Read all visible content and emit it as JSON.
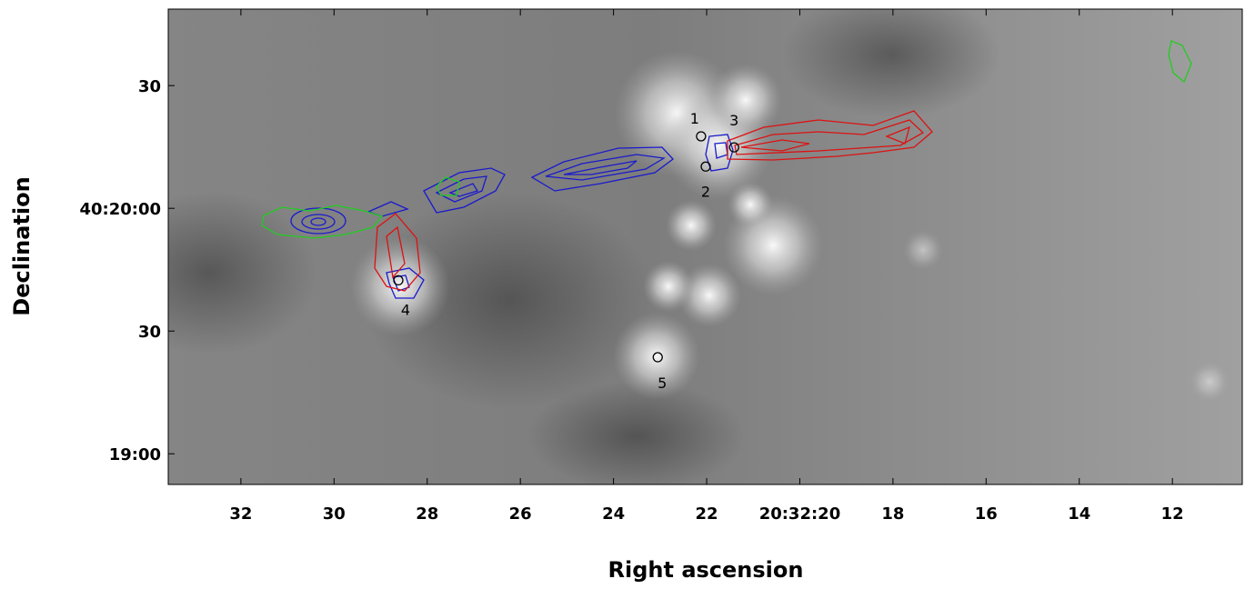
{
  "chart_data": {
    "type": "image",
    "xlabel": "Right ascension",
    "ylabel": "Declination",
    "xlim": [
      33.56,
      10.5
    ],
    "ylim": [
      -7.5,
      108.7
    ],
    "xticks": [
      32,
      30,
      28,
      26,
      24,
      22,
      {
        "value": 20,
        "label": "20:32:20"
      },
      18,
      16,
      14,
      12
    ],
    "yticks": [
      {
        "value": 0,
        "label": "19:00"
      },
      30,
      {
        "value": 60,
        "label": "40:20:00"
      },
      {
        "value": 90,
        "label": "30"
      }
    ],
    "sources": {
      "labels": [
        "1",
        "2",
        "3",
        "4",
        "5"
      ],
      "x": [
        22.12,
        22.02,
        21.41,
        28.62,
        23.05
      ],
      "y": [
        77.6,
        70.2,
        74.9,
        42.4,
        23.6
      ]
    },
    "marker_color": "#000000"
  }
}
